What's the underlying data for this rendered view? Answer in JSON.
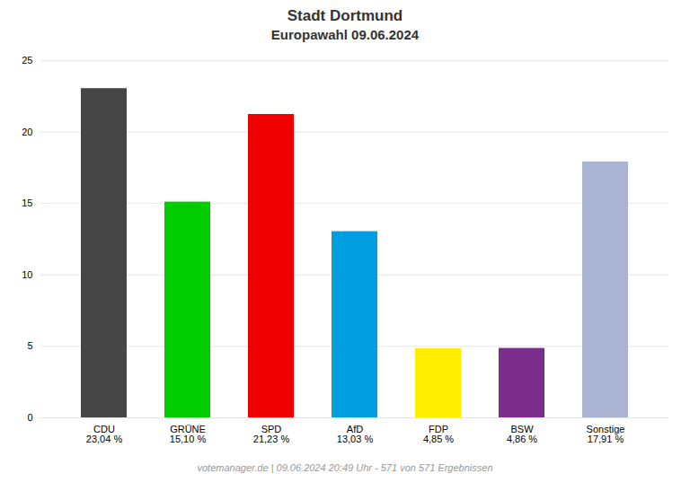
{
  "chart_data": {
    "type": "bar",
    "title": "Stadt Dortmund",
    "subtitle": "Europawahl 09.06.2024",
    "caption": "votemanager.de | 09.06.2024 20:49 Uhr - 571 von 571 Ergebnissen",
    "categories": [
      "CDU",
      "GRÜNE",
      "SPD",
      "AfD",
      "FDP",
      "BSW",
      "Sonstige"
    ],
    "values": [
      23.04,
      15.1,
      21.23,
      13.03,
      4.85,
      4.86,
      17.91
    ],
    "value_labels": [
      "23,04 %",
      "15,10 %",
      "21,23 %",
      "13,03 %",
      "4,85 %",
      "4,86 %",
      "17,91 %"
    ],
    "colors": [
      "#464646",
      "#00cc00",
      "#ee0000",
      "#009ee0",
      "#ffee00",
      "#7b2d8b",
      "#aab4d2"
    ],
    "ylim": [
      0,
      25
    ],
    "yticks": [
      0,
      5,
      10,
      15,
      20,
      25
    ],
    "grid": true
  }
}
